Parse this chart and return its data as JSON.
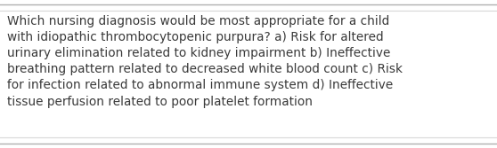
{
  "text": "Which nursing diagnosis would be most appropriate for a child\nwith idiopathic thrombocytopenic purpura? a) Risk for altered\nurinary elimination related to kidney impairment b) Ineffective\nbreathing pattern related to decreased white blood count c) Risk\nfor infection related to abnormal immune system d) Ineffective\ntissue perfusion related to poor platelet formation",
  "background_color": "#ffffff",
  "text_color": "#3a3a3a",
  "font_size": 9.8,
  "line_color_outer": "#b0b0b0",
  "line_color_inner": "#d8d8d8",
  "fig_width": 5.58,
  "fig_height": 1.67,
  "dpi": 100
}
